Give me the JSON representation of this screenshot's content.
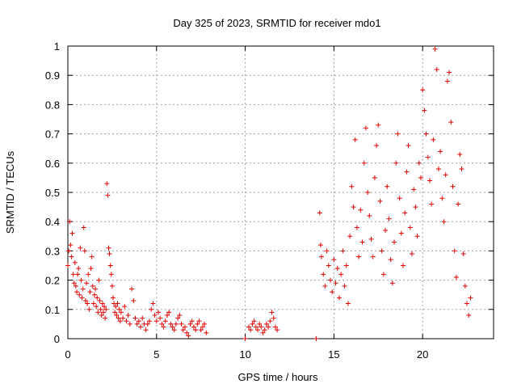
{
  "chart_data": {
    "type": "scatter",
    "title": "Day 325 of 2023, SRMTID for receiver mdo1",
    "xlabel": "GPS time / hours",
    "ylabel": "SRMTID / TECUs",
    "xlim": [
      0,
      24
    ],
    "ylim": [
      0,
      1
    ],
    "x_ticks": [
      0,
      5,
      10,
      15,
      20
    ],
    "x_tick_labels": [
      "0",
      "5",
      "10",
      "15",
      "20"
    ],
    "y_ticks": [
      0,
      0.1,
      0.2,
      0.3,
      0.4,
      0.5,
      0.6,
      0.7,
      0.8,
      0.9,
      1
    ],
    "y_tick_labels": [
      "0",
      "0.1",
      "0.2",
      "0.3",
      "0.4",
      "0.5",
      "0.6",
      "0.7",
      "0.8",
      "0.9",
      "1"
    ],
    "grid": true,
    "marker": "+",
    "color": "#e00000",
    "series": [
      {
        "name": "SRMTID",
        "points": [
          [
            0.0,
            0.25
          ],
          [
            0.05,
            0.3
          ],
          [
            0.1,
            0.4
          ],
          [
            0.15,
            0.32
          ],
          [
            0.2,
            0.28
          ],
          [
            0.25,
            0.36
          ],
          [
            0.3,
            0.22
          ],
          [
            0.35,
            0.19
          ],
          [
            0.4,
            0.26
          ],
          [
            0.45,
            0.18
          ],
          [
            0.5,
            0.16
          ],
          [
            0.55,
            0.22
          ],
          [
            0.6,
            0.24
          ],
          [
            0.65,
            0.15
          ],
          [
            0.7,
            0.31
          ],
          [
            0.75,
            0.2
          ],
          [
            0.8,
            0.14
          ],
          [
            0.85,
            0.17
          ],
          [
            0.9,
            0.38
          ],
          [
            0.95,
            0.3
          ],
          [
            1.0,
            0.13
          ],
          [
            1.05,
            0.19
          ],
          [
            1.1,
            0.12
          ],
          [
            1.15,
            0.22
          ],
          [
            1.2,
            0.1
          ],
          [
            1.25,
            0.16
          ],
          [
            1.3,
            0.24
          ],
          [
            1.35,
            0.28
          ],
          [
            1.4,
            0.18
          ],
          [
            1.45,
            0.12
          ],
          [
            1.5,
            0.15
          ],
          [
            1.55,
            0.17
          ],
          [
            1.6,
            0.11
          ],
          [
            1.65,
            0.14
          ],
          [
            1.7,
            0.09
          ],
          [
            1.75,
            0.2
          ],
          [
            1.8,
            0.13
          ],
          [
            1.85,
            0.1
          ],
          [
            1.9,
            0.08
          ],
          [
            1.95,
            0.12
          ],
          [
            2.0,
            0.09
          ],
          [
            2.05,
            0.11
          ],
          [
            2.1,
            0.07
          ],
          [
            2.15,
            0.1
          ],
          [
            2.2,
            0.53
          ],
          [
            2.25,
            0.49
          ],
          [
            2.3,
            0.31
          ],
          [
            2.35,
            0.29
          ],
          [
            2.4,
            0.25
          ],
          [
            2.45,
            0.22
          ],
          [
            2.5,
            0.18
          ],
          [
            2.55,
            0.14
          ],
          [
            2.6,
            0.12
          ],
          [
            2.65,
            0.09
          ],
          [
            2.7,
            0.11
          ],
          [
            2.75,
            0.08
          ],
          [
            2.8,
            0.12
          ],
          [
            2.85,
            0.07
          ],
          [
            2.9,
            0.1
          ],
          [
            2.95,
            0.06
          ],
          [
            3.0,
            0.09
          ],
          [
            3.1,
            0.07
          ],
          [
            3.2,
            0.11
          ],
          [
            3.3,
            0.06
          ],
          [
            3.4,
            0.08
          ],
          [
            3.5,
            0.05
          ],
          [
            3.6,
            0.17
          ],
          [
            3.7,
            0.13
          ],
          [
            3.8,
            0.07
          ],
          [
            3.9,
            0.05
          ],
          [
            4.0,
            0.06
          ],
          [
            4.1,
            0.04
          ],
          [
            4.2,
            0.07
          ],
          [
            4.3,
            0.05
          ],
          [
            4.4,
            0.03
          ],
          [
            4.5,
            0.05
          ],
          [
            4.6,
            0.06
          ],
          [
            4.7,
            0.1
          ],
          [
            4.8,
            0.12
          ],
          [
            4.9,
            0.08
          ],
          [
            5.0,
            0.06
          ],
          [
            5.1,
            0.09
          ],
          [
            5.2,
            0.07
          ],
          [
            5.3,
            0.05
          ],
          [
            5.4,
            0.04
          ],
          [
            5.5,
            0.06
          ],
          [
            5.6,
            0.08
          ],
          [
            5.7,
            0.09
          ],
          [
            5.8,
            0.05
          ],
          [
            5.9,
            0.04
          ],
          [
            6.0,
            0.03
          ],
          [
            6.1,
            0.05
          ],
          [
            6.2,
            0.07
          ],
          [
            6.3,
            0.08
          ],
          [
            6.4,
            0.05
          ],
          [
            6.5,
            0.03
          ],
          [
            6.6,
            0.04
          ],
          [
            6.7,
            0.02
          ],
          [
            6.8,
            0.01
          ],
          [
            6.9,
            0.05
          ],
          [
            7.0,
            0.06
          ],
          [
            7.1,
            0.04
          ],
          [
            7.2,
            0.03
          ],
          [
            7.3,
            0.05
          ],
          [
            7.4,
            0.06
          ],
          [
            7.5,
            0.03
          ],
          [
            7.6,
            0.04
          ],
          [
            7.7,
            0.05
          ],
          [
            7.8,
            0.02
          ],
          [
            10.0,
            0.0
          ],
          [
            10.2,
            0.04
          ],
          [
            10.3,
            0.03
          ],
          [
            10.4,
            0.05
          ],
          [
            10.5,
            0.06
          ],
          [
            10.6,
            0.04
          ],
          [
            10.7,
            0.03
          ],
          [
            10.8,
            0.05
          ],
          [
            10.9,
            0.04
          ],
          [
            11.0,
            0.02
          ],
          [
            11.1,
            0.03
          ],
          [
            11.2,
            0.05
          ],
          [
            11.3,
            0.04
          ],
          [
            11.4,
            0.06
          ],
          [
            11.5,
            0.09
          ],
          [
            11.6,
            0.07
          ],
          [
            11.7,
            0.04
          ],
          [
            11.8,
            0.03
          ],
          [
            14.0,
            0.0
          ],
          [
            14.2,
            0.43
          ],
          [
            14.25,
            0.32
          ],
          [
            14.3,
            0.28
          ],
          [
            14.4,
            0.22
          ],
          [
            14.5,
            0.18
          ],
          [
            14.6,
            0.3
          ],
          [
            14.7,
            0.25
          ],
          [
            14.8,
            0.2
          ],
          [
            14.9,
            0.16
          ],
          [
            15.0,
            0.27
          ],
          [
            15.1,
            0.19
          ],
          [
            15.2,
            0.24
          ],
          [
            15.3,
            0.14
          ],
          [
            15.4,
            0.22
          ],
          [
            15.5,
            0.3
          ],
          [
            15.6,
            0.18
          ],
          [
            15.7,
            0.25
          ],
          [
            15.8,
            0.12
          ],
          [
            15.9,
            0.35
          ],
          [
            16.0,
            0.52
          ],
          [
            16.1,
            0.45
          ],
          [
            16.2,
            0.68
          ],
          [
            16.3,
            0.38
          ],
          [
            16.4,
            0.28
          ],
          [
            16.5,
            0.44
          ],
          [
            16.6,
            0.33
          ],
          [
            16.7,
            0.6
          ],
          [
            16.8,
            0.72
          ],
          [
            16.9,
            0.5
          ],
          [
            17.0,
            0.42
          ],
          [
            17.1,
            0.34
          ],
          [
            17.2,
            0.28
          ],
          [
            17.3,
            0.55
          ],
          [
            17.4,
            0.66
          ],
          [
            17.5,
            0.73
          ],
          [
            17.6,
            0.47
          ],
          [
            17.7,
            0.3
          ],
          [
            17.8,
            0.22
          ],
          [
            17.9,
            0.37
          ],
          [
            18.0,
            0.52
          ],
          [
            18.1,
            0.41
          ],
          [
            18.2,
            0.27
          ],
          [
            18.3,
            0.19
          ],
          [
            18.4,
            0.33
          ],
          [
            18.5,
            0.6
          ],
          [
            18.6,
            0.7
          ],
          [
            18.7,
            0.48
          ],
          [
            18.8,
            0.36
          ],
          [
            18.9,
            0.25
          ],
          [
            19.0,
            0.43
          ],
          [
            19.1,
            0.57
          ],
          [
            19.2,
            0.66
          ],
          [
            19.3,
            0.38
          ],
          [
            19.4,
            0.29
          ],
          [
            19.5,
            0.51
          ],
          [
            19.6,
            0.45
          ],
          [
            19.7,
            0.35
          ],
          [
            19.8,
            0.6
          ],
          [
            19.9,
            0.55
          ],
          [
            20.0,
            0.85
          ],
          [
            20.1,
            0.78
          ],
          [
            20.2,
            0.7
          ],
          [
            20.3,
            0.62
          ],
          [
            20.4,
            0.54
          ],
          [
            20.5,
            0.46
          ],
          [
            20.6,
            0.68
          ],
          [
            20.7,
            0.99
          ],
          [
            20.8,
            0.92
          ],
          [
            20.9,
            0.58
          ],
          [
            21.0,
            0.64
          ],
          [
            21.1,
            0.48
          ],
          [
            21.2,
            0.4
          ],
          [
            21.3,
            0.56
          ],
          [
            21.4,
            0.88
          ],
          [
            21.5,
            0.91
          ],
          [
            21.6,
            0.74
          ],
          [
            21.7,
            0.52
          ],
          [
            21.8,
            0.3
          ],
          [
            21.9,
            0.21
          ],
          [
            22.0,
            0.46
          ],
          [
            22.1,
            0.63
          ],
          [
            22.2,
            0.58
          ],
          [
            22.3,
            0.29
          ],
          [
            22.4,
            0.18
          ],
          [
            22.5,
            0.12
          ],
          [
            22.6,
            0.08
          ],
          [
            22.7,
            0.14
          ]
        ]
      }
    ]
  }
}
